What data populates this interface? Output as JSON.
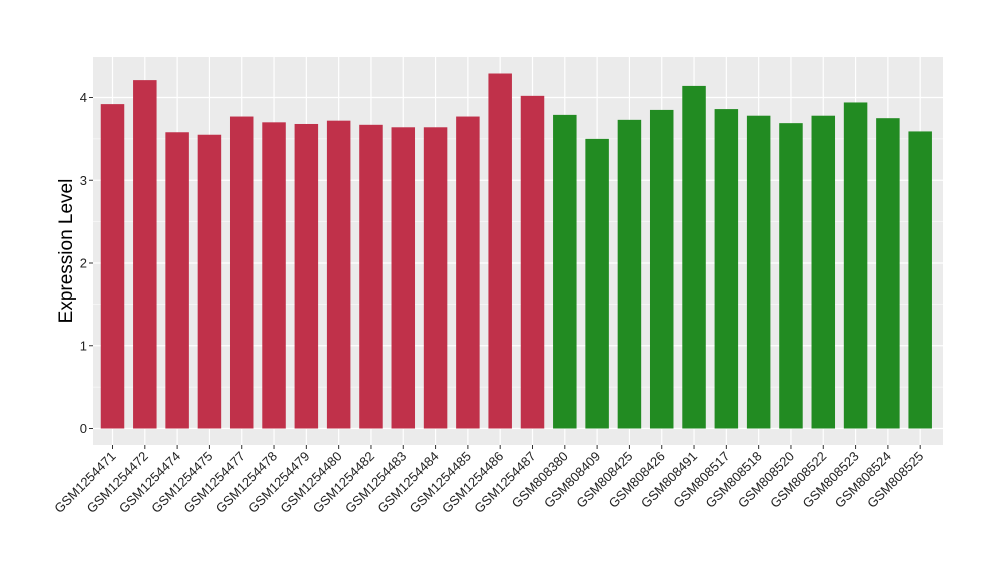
{
  "chart_data": {
    "type": "bar",
    "title": "",
    "xlabel": "",
    "ylabel": "Expression Level",
    "ylim": [
      0,
      4.5
    ],
    "yticks": [
      0,
      1,
      2,
      3,
      4
    ],
    "ytick_labels": [
      "0",
      "1",
      "2",
      "3",
      "4"
    ],
    "grid": true,
    "legend": "none",
    "categories": [
      "GSM1254471",
      "GSM1254472",
      "GSM1254474",
      "GSM1254475",
      "GSM1254477",
      "GSM1254478",
      "GSM1254479",
      "GSM1254480",
      "GSM1254482",
      "GSM1254483",
      "GSM1254484",
      "GSM1254485",
      "GSM1254486",
      "GSM1254487",
      "GSM808380",
      "GSM808409",
      "GSM808425",
      "GSM808426",
      "GSM808491",
      "GSM808517",
      "GSM808518",
      "GSM808520",
      "GSM808522",
      "GSM808523",
      "GSM808524",
      "GSM808525"
    ],
    "values": [
      3.92,
      4.21,
      3.58,
      3.55,
      3.77,
      3.7,
      3.68,
      3.72,
      3.67,
      3.64,
      3.64,
      3.77,
      4.29,
      4.02,
      3.79,
      3.5,
      3.73,
      3.85,
      4.14,
      3.86,
      3.78,
      3.69,
      3.78,
      3.94,
      3.75,
      3.59
    ],
    "bar_colors": [
      "#C0314A",
      "#C0314A",
      "#C0314A",
      "#C0314A",
      "#C0314A",
      "#C0314A",
      "#C0314A",
      "#C0314A",
      "#C0314A",
      "#C0314A",
      "#C0314A",
      "#C0314A",
      "#C0314A",
      "#C0314A",
      "#228B22",
      "#228B22",
      "#228B22",
      "#228B22",
      "#228B22",
      "#228B22",
      "#228B22",
      "#228B22",
      "#228B22",
      "#228B22",
      "#228B22",
      "#228B22"
    ],
    "panel_background": "#EBEBEB",
    "grid_color": "#FFFFFF"
  }
}
